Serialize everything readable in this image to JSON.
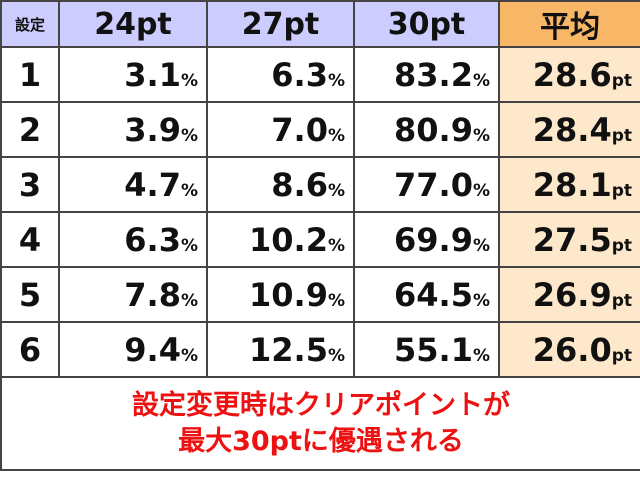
{
  "table": {
    "header": [
      "設定",
      "24pt",
      "27pt",
      "30pt",
      "平均"
    ],
    "rows": [
      {
        "setting": "1",
        "cells": [
          {
            "num": "3.1",
            "unit": "%"
          },
          {
            "num": "6.3",
            "unit": "%"
          },
          {
            "num": "83.2",
            "unit": "%"
          },
          {
            "num": "28.6",
            "unit": "pt"
          }
        ]
      },
      {
        "setting": "2",
        "cells": [
          {
            "num": "3.9",
            "unit": "%"
          },
          {
            "num": "7.0",
            "unit": "%"
          },
          {
            "num": "80.9",
            "unit": "%"
          },
          {
            "num": "28.4",
            "unit": "pt"
          }
        ]
      },
      {
        "setting": "3",
        "cells": [
          {
            "num": "4.7",
            "unit": "%"
          },
          {
            "num": "8.6",
            "unit": "%"
          },
          {
            "num": "77.0",
            "unit": "%"
          },
          {
            "num": "28.1",
            "unit": "pt"
          }
        ]
      },
      {
        "setting": "4",
        "cells": [
          {
            "num": "6.3",
            "unit": "%"
          },
          {
            "num": "10.2",
            "unit": "%"
          },
          {
            "num": "69.9",
            "unit": "%"
          },
          {
            "num": "27.5",
            "unit": "pt"
          }
        ]
      },
      {
        "setting": "5",
        "cells": [
          {
            "num": "7.8",
            "unit": "%"
          },
          {
            "num": "10.9",
            "unit": "%"
          },
          {
            "num": "64.5",
            "unit": "%"
          },
          {
            "num": "26.9",
            "unit": "pt"
          }
        ]
      },
      {
        "setting": "6",
        "cells": [
          {
            "num": "9.4",
            "unit": "%"
          },
          {
            "num": "12.5",
            "unit": "%"
          },
          {
            "num": "55.1",
            "unit": "%"
          },
          {
            "num": "26.0",
            "unit": "pt"
          }
        ]
      }
    ],
    "note": [
      "設定変更時はクリアポイントが",
      "最大30ptに優遇される"
    ]
  }
}
